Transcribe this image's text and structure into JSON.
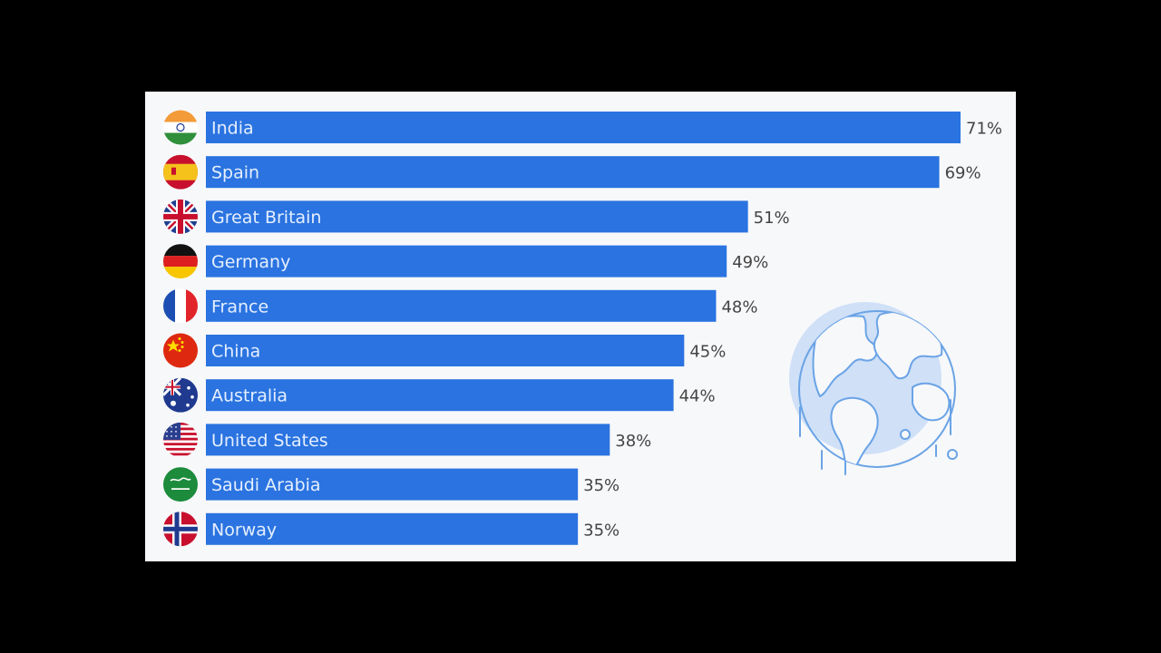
{
  "colors": {
    "bar": "#2a73e0",
    "panel": "#f7f8fa",
    "globe_fill": "#cfe0f7",
    "globe_line": "#6aa3e6"
  },
  "decoration": {
    "icon": "melting-globe-icon"
  },
  "chart_data": {
    "type": "bar",
    "orientation": "horizontal",
    "title": "",
    "xlabel": "",
    "ylabel": "",
    "xlim": [
      0,
      71
    ],
    "grid": false,
    "legend": "none",
    "categories": [
      "India",
      "Spain",
      "Great Britain",
      "Germany",
      "France",
      "China",
      "Australia",
      "United States",
      "Saudi Arabia",
      "Norway"
    ],
    "values": [
      71,
      69,
      51,
      49,
      48,
      45,
      44,
      38,
      35,
      35
    ],
    "value_labels": [
      "71%",
      "69%",
      "51%",
      "49%",
      "48%",
      "45%",
      "44%",
      "38%",
      "35%",
      "35%"
    ],
    "flags": [
      "india-flag-icon",
      "spain-flag-icon",
      "great-britain-flag-icon",
      "germany-flag-icon",
      "france-flag-icon",
      "china-flag-icon",
      "australia-flag-icon",
      "united-states-flag-icon",
      "saudi-arabia-flag-icon",
      "norway-flag-icon"
    ]
  }
}
